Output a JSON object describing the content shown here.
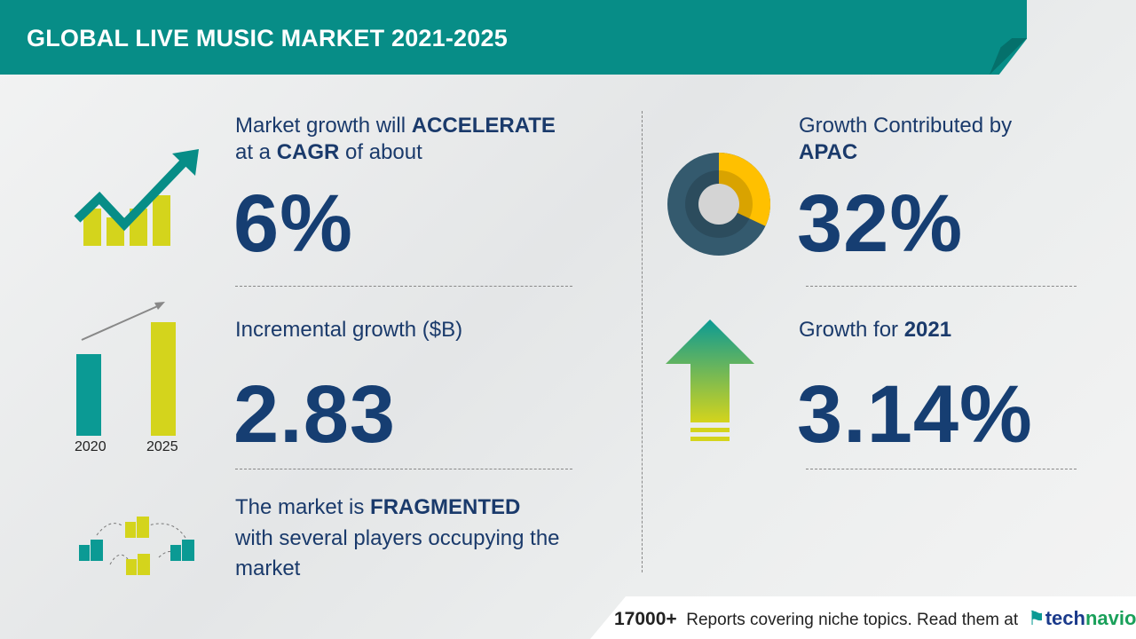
{
  "header": {
    "title": "GLOBAL LIVE MUSIC MARKET 2021-2025"
  },
  "cagr": {
    "line1_prefix": "Market growth will ",
    "line1_bold": "ACCELERATE",
    "line2_prefix": "at a ",
    "line2_bold": "CAGR",
    "line2_suffix": " of about",
    "value": "6%"
  },
  "incremental": {
    "label": "Incremental growth ($B)",
    "value": "2.83",
    "bar_years": [
      "2020",
      "2025"
    ]
  },
  "market": {
    "line1_prefix": "The market is ",
    "line1_bold": "FRAGMENTED",
    "line2": "with several players occupying the",
    "line3": "market"
  },
  "region": {
    "label": "Growth Contributed by",
    "region": "APAC",
    "value": "32%",
    "share_percent": 32
  },
  "yoy": {
    "label_prefix": "Growth for ",
    "year": "2021",
    "value": "3.14%"
  },
  "footer": {
    "count": "17000+",
    "text": "Reports covering niche topics. Read them at",
    "logo_tech": "tech",
    "logo_navio": "navio"
  },
  "colors": {
    "teal": "#078d87",
    "navy": "#163e72",
    "yellow": "#ffc000",
    "lime": "#d4d41c",
    "donut_dark": "#345a6e"
  }
}
